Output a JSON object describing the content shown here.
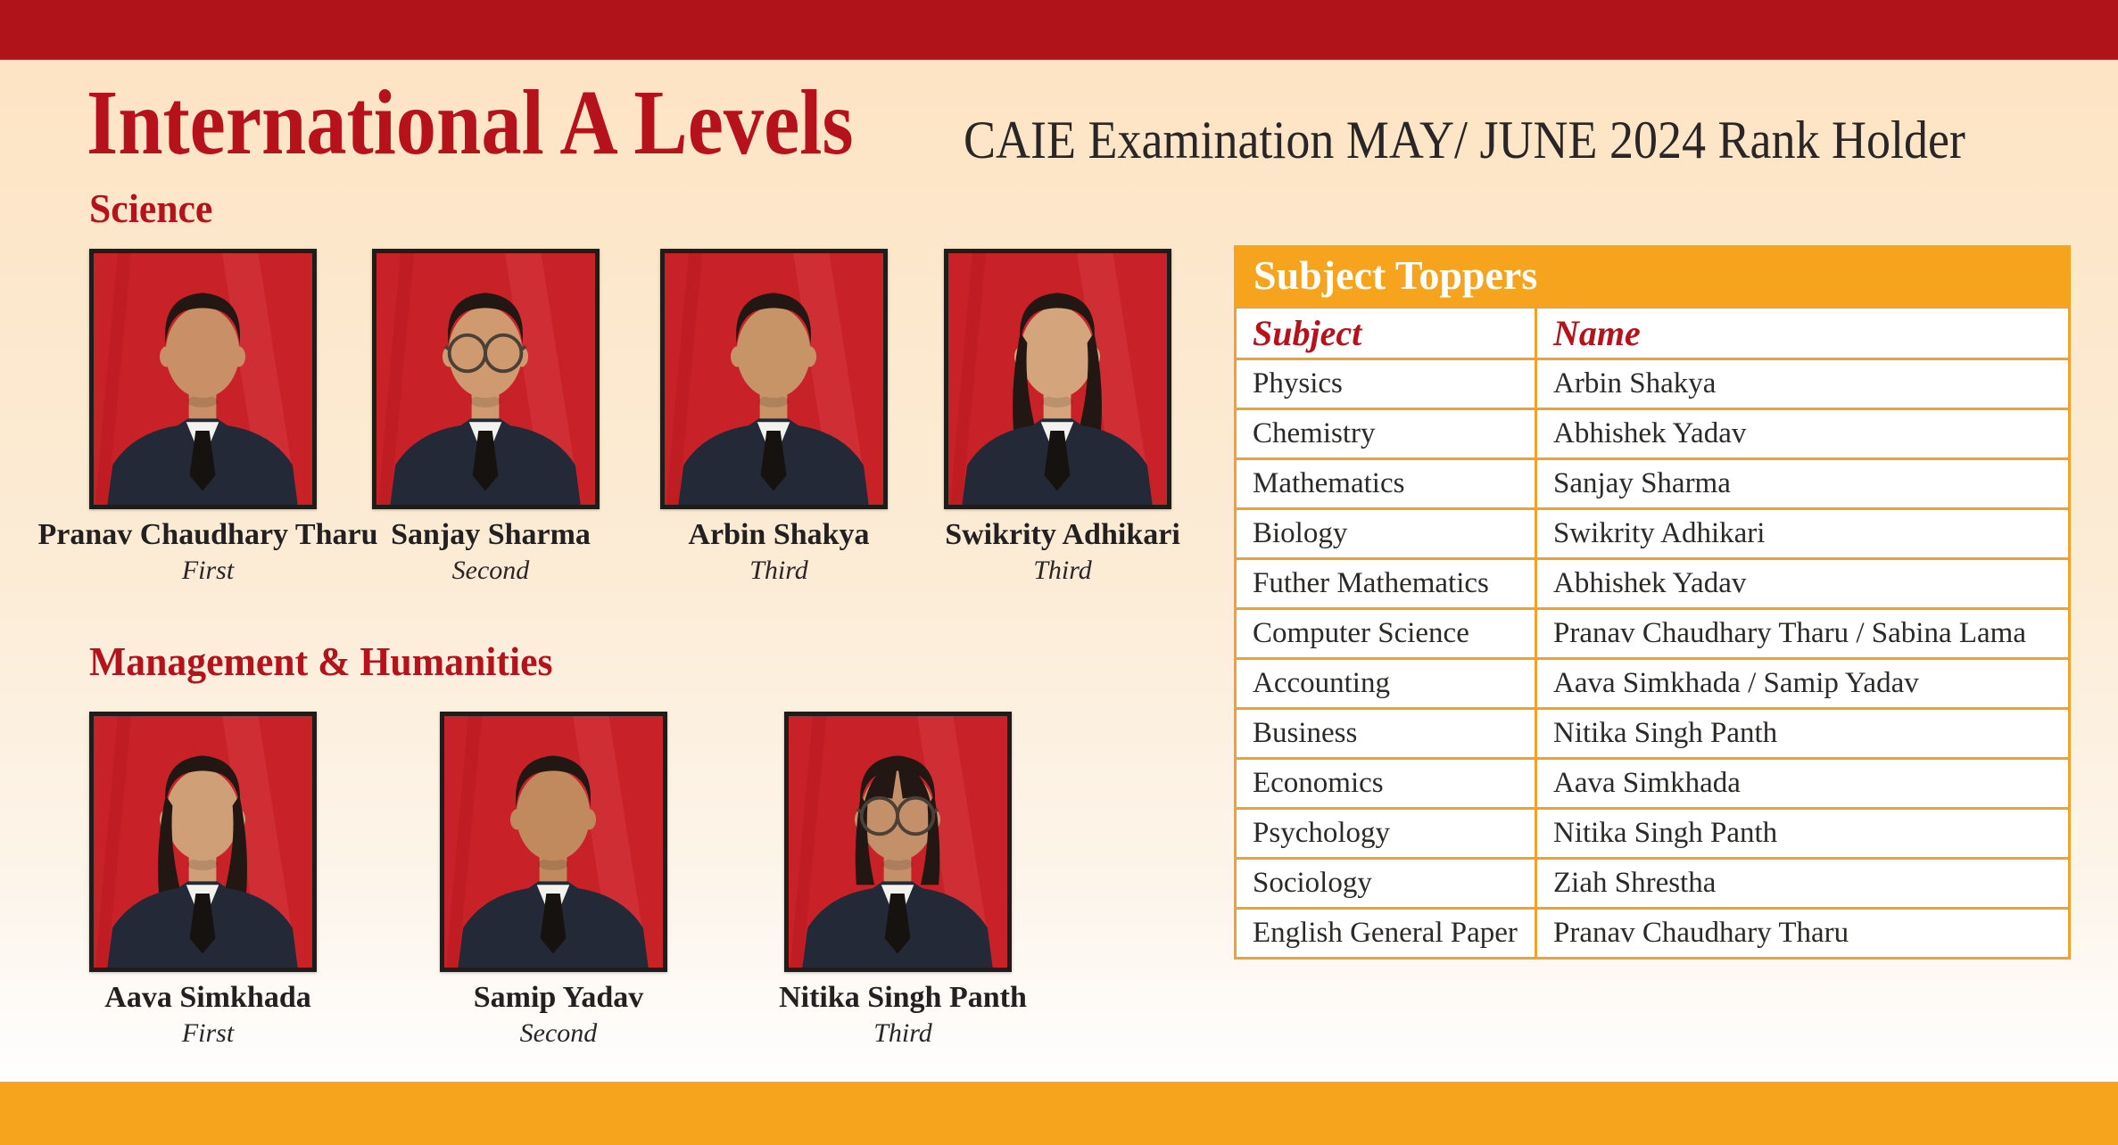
{
  "colors": {
    "darkred": "#b0131a",
    "title_red": "#b5121b",
    "orange": "#f6a41d",
    "table_border": "#f0a22d",
    "photo_red": "#c92128",
    "text_dark": "#242021"
  },
  "header": {
    "title": "International A Levels",
    "subtitle": "CAIE Examination MAY/ JUNE 2024 Rank Holder"
  },
  "sections": [
    {
      "heading": "Science",
      "students": [
        {
          "name": "Pranav Chaudhary Tharu",
          "rank": "First",
          "photo": {
            "hair": "short",
            "glasses": false,
            "skin": "#c98f66"
          }
        },
        {
          "name": "Sanjay Sharma",
          "rank": "Second",
          "photo": {
            "hair": "short",
            "glasses": true,
            "skin": "#cf9a70"
          }
        },
        {
          "name": "Arbin Shakya",
          "rank": "Third",
          "photo": {
            "hair": "short",
            "glasses": false,
            "skin": "#c79468"
          }
        },
        {
          "name": "Swikrity Adhikari",
          "rank": "Third",
          "photo": {
            "hair": "long",
            "glasses": false,
            "skin": "#d4a57c"
          }
        }
      ]
    },
    {
      "heading": "Management & Humanities",
      "students": [
        {
          "name": "Aava Simkhada",
          "rank": "First",
          "photo": {
            "hair": "long",
            "glasses": false,
            "skin": "#cf9f78"
          }
        },
        {
          "name": "Samip Yadav",
          "rank": "Second",
          "photo": {
            "hair": "short",
            "glasses": false,
            "skin": "#c08a5e"
          }
        },
        {
          "name": "Nitika Singh Panth",
          "rank": "Third",
          "photo": {
            "hair": "fringe",
            "glasses": true,
            "skin": "#c4906a"
          }
        }
      ]
    }
  ],
  "toppers_table": {
    "title": "Subject Toppers",
    "columns": [
      "Subject",
      "Name"
    ],
    "rows": [
      [
        "Physics",
        "Arbin Shakya"
      ],
      [
        "Chemistry",
        "Abhishek Yadav"
      ],
      [
        "Mathematics",
        "Sanjay Sharma"
      ],
      [
        "Biology",
        "Swikrity Adhikari"
      ],
      [
        "Futher Mathematics",
        "Abhishek Yadav"
      ],
      [
        "Computer Science",
        "Pranav Chaudhary Tharu / Sabina Lama"
      ],
      [
        "Accounting",
        "Aava Simkhada / Samip Yadav"
      ],
      [
        "Business",
        "Nitika Singh Panth"
      ],
      [
        "Economics",
        "Aava Simkhada"
      ],
      [
        "Psychology",
        "Nitika Singh Panth"
      ],
      [
        "Sociology",
        "Ziah Shrestha"
      ],
      [
        "English General Paper",
        "Pranav Chaudhary Tharu"
      ]
    ]
  }
}
